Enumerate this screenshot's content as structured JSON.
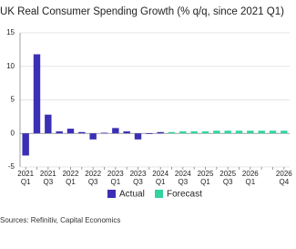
{
  "chart_data": {
    "type": "bar",
    "title": "UK Real Consumer Spending Growth (% q/q, since 2021 Q1)",
    "source": "Sources: Refinitiv, Capital Economics",
    "categories": [
      [
        "2021",
        "Q1"
      ],
      null,
      [
        "2021",
        "Q3"
      ],
      null,
      [
        "2022",
        "Q1"
      ],
      null,
      [
        "2022",
        "Q3"
      ],
      null,
      [
        "2023",
        "Q1"
      ],
      null,
      [
        "2023",
        "Q3"
      ],
      null,
      [
        "2024",
        "Q1"
      ],
      null,
      [
        "2024",
        "Q3"
      ],
      null,
      [
        "2025",
        "Q1"
      ],
      null,
      [
        "2025",
        "Q3"
      ],
      null,
      [
        "2026",
        "Q1"
      ],
      null,
      null,
      [
        "2026",
        "Q4"
      ]
    ],
    "series": [
      {
        "name": "Actual",
        "color": "#3b2fb5",
        "values": [
          -3.3,
          11.8,
          2.8,
          0.3,
          0.7,
          0.2,
          -0.9,
          0.1,
          0.8,
          0.3,
          -0.9,
          -0.1,
          0.2,
          null,
          null,
          null,
          null,
          null,
          null,
          null,
          null,
          null,
          null,
          null
        ]
      },
      {
        "name": "Forecast",
        "color": "#2fd3a0",
        "values": [
          null,
          null,
          null,
          null,
          null,
          null,
          null,
          null,
          null,
          null,
          null,
          null,
          null,
          0.2,
          0.3,
          0.3,
          0.3,
          0.4,
          0.4,
          0.4,
          0.4,
          0.4,
          0.4,
          0.4
        ]
      }
    ],
    "ylim": [
      -5,
      15
    ],
    "yticks": [
      -5,
      0,
      5,
      10,
      15
    ],
    "grid": true,
    "legend": "bottom"
  }
}
